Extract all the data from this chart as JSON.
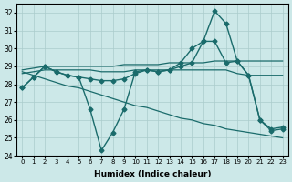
{
  "xlabel": "Humidex (Indice chaleur)",
  "ylabel": "",
  "xlim": [
    -0.5,
    23.5
  ],
  "ylim": [
    24,
    32.5
  ],
  "yticks": [
    24,
    25,
    26,
    27,
    28,
    29,
    30,
    31,
    32
  ],
  "xticks": [
    0,
    1,
    2,
    3,
    4,
    5,
    6,
    7,
    8,
    9,
    10,
    11,
    12,
    13,
    14,
    15,
    16,
    17,
    18,
    19,
    20,
    21,
    22,
    23
  ],
  "bg_color": "#cce8e8",
  "line_color": "#1a6b6b",
  "series": [
    {
      "x": [
        0,
        1,
        2,
        3,
        4,
        5,
        6,
        7,
        8,
        9,
        10,
        11,
        12,
        13,
        14,
        15,
        16,
        17,
        18,
        19,
        20,
        21,
        22,
        23
      ],
      "y": [
        27.8,
        28.4,
        29.0,
        28.7,
        28.5,
        28.4,
        26.6,
        24.3,
        25.3,
        26.6,
        28.7,
        28.8,
        28.7,
        28.8,
        29.2,
        30.0,
        30.4,
        32.1,
        31.4,
        29.3,
        28.5,
        26.0,
        25.5,
        25.6
      ],
      "marker": "D",
      "markersize": 2.5,
      "linewidth": 1.0
    },
    {
      "x": [
        0,
        1,
        2,
        3,
        4,
        5,
        6,
        7,
        8,
        9,
        10,
        11,
        12,
        13,
        14,
        15,
        16,
        17,
        18,
        19,
        20,
        21,
        22,
        23
      ],
      "y": [
        28.8,
        28.9,
        29.0,
        29.0,
        29.0,
        29.0,
        29.0,
        29.0,
        29.0,
        29.1,
        29.1,
        29.1,
        29.1,
        29.2,
        29.2,
        29.2,
        29.2,
        29.3,
        29.3,
        29.3,
        29.3,
        29.3,
        29.3,
        29.3
      ],
      "marker": null,
      "markersize": 0,
      "linewidth": 0.9
    },
    {
      "x": [
        0,
        1,
        2,
        3,
        4,
        5,
        6,
        7,
        8,
        9,
        10,
        11,
        12,
        13,
        14,
        15,
        16,
        17,
        18,
        19,
        20,
        21,
        22,
        23
      ],
      "y": [
        28.6,
        28.7,
        28.8,
        28.8,
        28.8,
        28.8,
        28.8,
        28.7,
        28.7,
        28.7,
        28.8,
        28.8,
        28.8,
        28.8,
        28.8,
        28.8,
        28.8,
        28.8,
        28.8,
        28.6,
        28.5,
        28.5,
        28.5,
        28.5
      ],
      "marker": null,
      "markersize": 0,
      "linewidth": 0.9
    },
    {
      "x": [
        0,
        1,
        2,
        3,
        4,
        5,
        6,
        7,
        8,
        9,
        10,
        11,
        12,
        13,
        14,
        15,
        16,
        17,
        18,
        19,
        20,
        21,
        22,
        23
      ],
      "y": [
        28.7,
        28.5,
        28.3,
        28.1,
        27.9,
        27.8,
        27.6,
        27.4,
        27.2,
        27.0,
        26.8,
        26.7,
        26.5,
        26.3,
        26.1,
        26.0,
        25.8,
        25.7,
        25.5,
        25.4,
        25.3,
        25.2,
        25.1,
        25.0
      ],
      "marker": null,
      "markersize": 0,
      "linewidth": 0.9
    },
    {
      "x": [
        0,
        1,
        2,
        3,
        4,
        5,
        6,
        7,
        8,
        9,
        10,
        11,
        12,
        13,
        14,
        15,
        16,
        17,
        18,
        19,
        20,
        21,
        22,
        23
      ],
      "y": [
        27.8,
        28.4,
        29.0,
        28.7,
        28.5,
        28.4,
        28.3,
        28.2,
        28.2,
        28.3,
        28.6,
        28.8,
        28.7,
        28.8,
        29.0,
        29.2,
        30.4,
        30.4,
        29.2,
        29.3,
        28.5,
        26.0,
        25.4,
        25.5
      ],
      "marker": "D",
      "markersize": 2.5,
      "linewidth": 1.0
    }
  ]
}
